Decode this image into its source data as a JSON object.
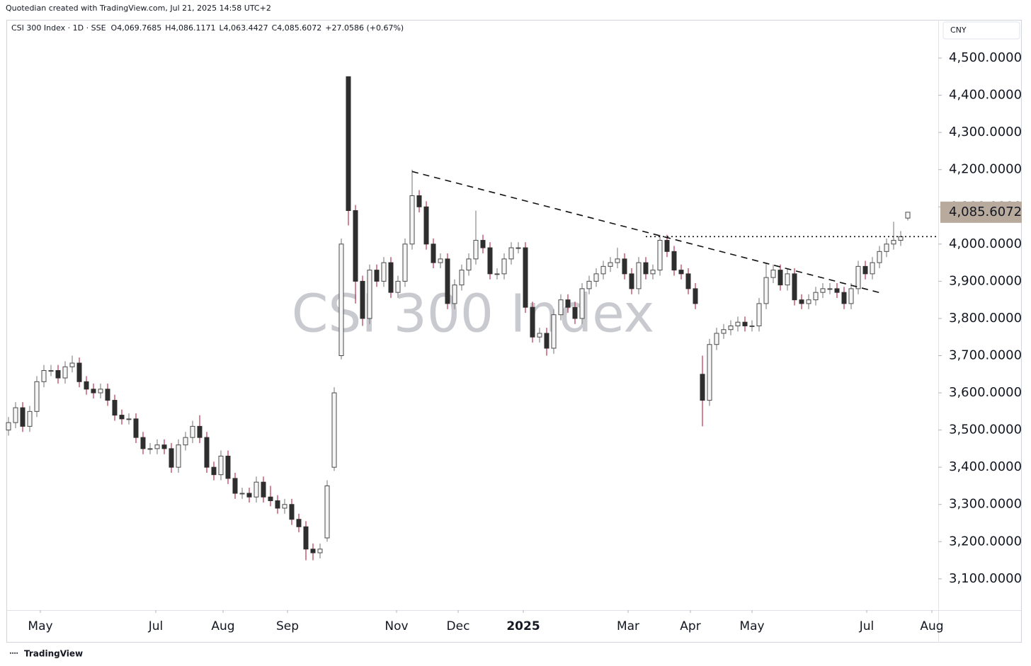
{
  "chart_data": {
    "type": "candlestick",
    "credit": "Quotedian created with TradingView.com, Jul 21, 2025 14:58 UTC+2",
    "symbol": "CSI 300 Index · 1D · SSE",
    "ohlc_legend": [
      {
        "label": "O",
        "value": "4,069.7685"
      },
      {
        "label": "H",
        "value": "4,086.1171"
      },
      {
        "label": "L",
        "value": "4,063.4427"
      },
      {
        "label": "C",
        "value": "4,085.6072"
      }
    ],
    "change": "+27.0586 (+0.67%)",
    "watermark": "CSI 300 Index",
    "currency": "CNY",
    "brand": "TradingView",
    "last_label": "4,085.6072",
    "up_color": "#f6f6f6",
    "up_border": "#4a4a4a",
    "up_wick": "#8a8a8a",
    "down_color": "#2e2e2e",
    "down_wick": "#b8344f",
    "open": [
      3500,
      3520,
      3560,
      3510,
      3550,
      3630,
      3660,
      3660,
      3640,
      3670,
      3680,
      3630,
      3610,
      3600,
      3610,
      3580,
      3540,
      3530,
      3530,
      3480,
      3450,
      3450,
      3460,
      3450,
      3400,
      3460,
      3480,
      3510,
      3480,
      3400,
      3380,
      3430,
      3370,
      3330,
      3330,
      3320,
      3360,
      3320,
      3310,
      3290,
      3300,
      3260,
      3240,
      3180,
      3170,
      3210,
      3400,
      3700,
      4450,
      4090,
      3900,
      3800,
      3930,
      3900,
      3950,
      3870,
      3900,
      4000,
      4130,
      4100,
      4000,
      3950,
      3960,
      3840,
      3890,
      3930,
      3960,
      4010,
      3990,
      3920,
      3920,
      3960,
      3990,
      3990,
      3830,
      3750,
      3760,
      3720,
      3810,
      3850,
      3830,
      3800,
      3880,
      3900,
      3920,
      3940,
      3950,
      3960,
      3920,
      3880,
      3950,
      3920,
      3930,
      4010,
      3980,
      3930,
      3920,
      3880,
      3650,
      3580,
      3730,
      3760,
      3770,
      3780,
      3790,
      3780,
      3780,
      3840,
      3910,
      3930,
      3890,
      3920,
      3850,
      3840,
      3850,
      3870,
      3880,
      3880,
      3870,
      3840,
      3880,
      3940,
      3920,
      3950,
      3980,
      4000,
      4010,
      4069.7685
    ],
    "high": [
      3535,
      3575,
      3575,
      3565,
      3645,
      3675,
      3675,
      3675,
      3685,
      3700,
      3695,
      3645,
      3625,
      3625,
      3625,
      3595,
      3555,
      3545,
      3545,
      3495,
      3465,
      3475,
      3475,
      3465,
      3475,
      3495,
      3525,
      3540,
      3495,
      3415,
      3445,
      3445,
      3385,
      3345,
      3345,
      3375,
      3375,
      3350,
      3325,
      3315,
      3315,
      3275,
      3255,
      3195,
      3195,
      3365,
      3615,
      4015,
      4450,
      4105,
      3915,
      3945,
      3945,
      3965,
      3965,
      3915,
      4015,
      4200,
      4145,
      4115,
      4015,
      3975,
      3975,
      3905,
      3945,
      3975,
      4090,
      4025,
      4005,
      3935,
      3975,
      4005,
      4005,
      4005,
      3845,
      3775,
      3775,
      3825,
      3865,
      3865,
      3845,
      3895,
      3915,
      3935,
      3955,
      3965,
      3990,
      3975,
      3935,
      3965,
      3965,
      3945,
      4025,
      4025,
      3995,
      3945,
      3935,
      3895,
      3700,
      3745,
      3775,
      3785,
      3795,
      3805,
      3805,
      3795,
      3855,
      3950,
      3945,
      3945,
      3935,
      3935,
      3865,
      3865,
      3885,
      3895,
      3895,
      3895,
      3885,
      3895,
      3955,
      3955,
      3965,
      3995,
      4015,
      4060,
      4035,
      4086.1171
    ],
    "low": [
      3485,
      3505,
      3495,
      3495,
      3535,
      3615,
      3645,
      3625,
      3625,
      3655,
      3615,
      3595,
      3585,
      3585,
      3565,
      3525,
      3515,
      3515,
      3465,
      3435,
      3435,
      3435,
      3435,
      3385,
      3385,
      3445,
      3465,
      3465,
      3385,
      3365,
      3365,
      3355,
      3315,
      3315,
      3305,
      3305,
      3305,
      3295,
      3275,
      3275,
      3245,
      3225,
      3150,
      3150,
      3155,
      3200,
      3390,
      3690,
      4050,
      3840,
      3780,
      3785,
      3885,
      3885,
      3855,
      3855,
      3885,
      3985,
      4085,
      3985,
      3935,
      3935,
      3825,
      3825,
      3875,
      3915,
      3945,
      3975,
      3905,
      3905,
      3905,
      3945,
      3975,
      3815,
      3735,
      3735,
      3700,
      3705,
      3795,
      3815,
      3785,
      3785,
      3865,
      3885,
      3905,
      3925,
      3935,
      3905,
      3865,
      3865,
      3905,
      3905,
      3915,
      3965,
      3915,
      3905,
      3865,
      3825,
      3510,
      3565,
      3715,
      3745,
      3755,
      3765,
      3765,
      3765,
      3765,
      3825,
      3895,
      3875,
      3875,
      3835,
      3825,
      3825,
      3835,
      3855,
      3865,
      3855,
      3825,
      3825,
      3865,
      3905,
      3905,
      3935,
      3965,
      3985,
      3995,
      4063.4427
    ],
    "close": [
      3520,
      3560,
      3510,
      3550,
      3630,
      3660,
      3660,
      3640,
      3670,
      3680,
      3630,
      3610,
      3600,
      3610,
      3580,
      3540,
      3530,
      3530,
      3480,
      3450,
      3450,
      3460,
      3450,
      3400,
      3460,
      3480,
      3510,
      3480,
      3400,
      3380,
      3430,
      3370,
      3330,
      3330,
      3320,
      3360,
      3320,
      3310,
      3290,
      3300,
      3260,
      3240,
      3180,
      3170,
      3180,
      3350,
      3600,
      4000,
      4090,
      3900,
      3800,
      3930,
      3900,
      3950,
      3870,
      3900,
      4000,
      4130,
      4100,
      4000,
      3950,
      3960,
      3840,
      3890,
      3930,
      3960,
      4010,
      3990,
      3920,
      3920,
      3960,
      3990,
      3990,
      3830,
      3750,
      3760,
      3720,
      3810,
      3850,
      3830,
      3800,
      3880,
      3900,
      3920,
      3940,
      3950,
      3960,
      3920,
      3880,
      3950,
      3920,
      3930,
      4010,
      3980,
      3930,
      3920,
      3880,
      3840,
      3580,
      3730,
      3760,
      3770,
      3780,
      3790,
      3780,
      3780,
      3840,
      3910,
      3930,
      3890,
      3920,
      3850,
      3840,
      3850,
      3870,
      3880,
      3880,
      3870,
      3840,
      3880,
      3940,
      3920,
      3950,
      3980,
      4000,
      4010,
      4020,
      4085.6072
    ],
    "xlim": [
      -0.7,
      131.3
    ],
    "xticks": [
      {
        "value": 4.5,
        "label": "May"
      },
      {
        "value": 20.8,
        "label": "Jul"
      },
      {
        "value": 30.3,
        "label": "Aug"
      },
      {
        "value": 39.4,
        "label": "Sep"
      },
      {
        "value": 54.8,
        "label": "Nov"
      },
      {
        "value": 63.5,
        "label": "Dec"
      },
      {
        "value": 72.7,
        "label": "2025"
      },
      {
        "value": 87.5,
        "label": "Mar"
      },
      {
        "value": 96.3,
        "label": "Apr"
      },
      {
        "value": 105,
        "label": "May"
      },
      {
        "value": 121.2,
        "label": "Jul"
      },
      {
        "value": 130.4,
        "label": "Aug"
      }
    ],
    "ylim": [
      3016,
      4599
    ],
    "yticks": [
      {
        "value": 3100,
        "label": "3,100.0000"
      },
      {
        "value": 3200,
        "label": "3,200.0000"
      },
      {
        "value": 3300,
        "label": "3,300.0000"
      },
      {
        "value": 3400,
        "label": "3,400.0000"
      },
      {
        "value": 3500,
        "label": "3,500.0000"
      },
      {
        "value": 3600,
        "label": "3,600.0000"
      },
      {
        "value": 3700,
        "label": "3,700.0000"
      },
      {
        "value": 3800,
        "label": "3,800.0000"
      },
      {
        "value": 3900,
        "label": "3,900.0000"
      },
      {
        "value": 4000,
        "label": "4,000.0000"
      },
      {
        "value": 4100,
        "label": "4,100.0000"
      },
      {
        "value": 4200,
        "label": "4,200.0000"
      },
      {
        "value": 4300,
        "label": "4,300.0000"
      },
      {
        "value": 4400,
        "label": "4,400.0000"
      },
      {
        "value": 4500,
        "label": "4,500.0000"
      }
    ],
    "trendline": {
      "x": [
        57,
        123.3
      ],
      "y": [
        4195,
        3868
      ]
    },
    "resistance": {
      "x": [
        90,
        131.3
      ],
      "y": 4020
    }
  }
}
